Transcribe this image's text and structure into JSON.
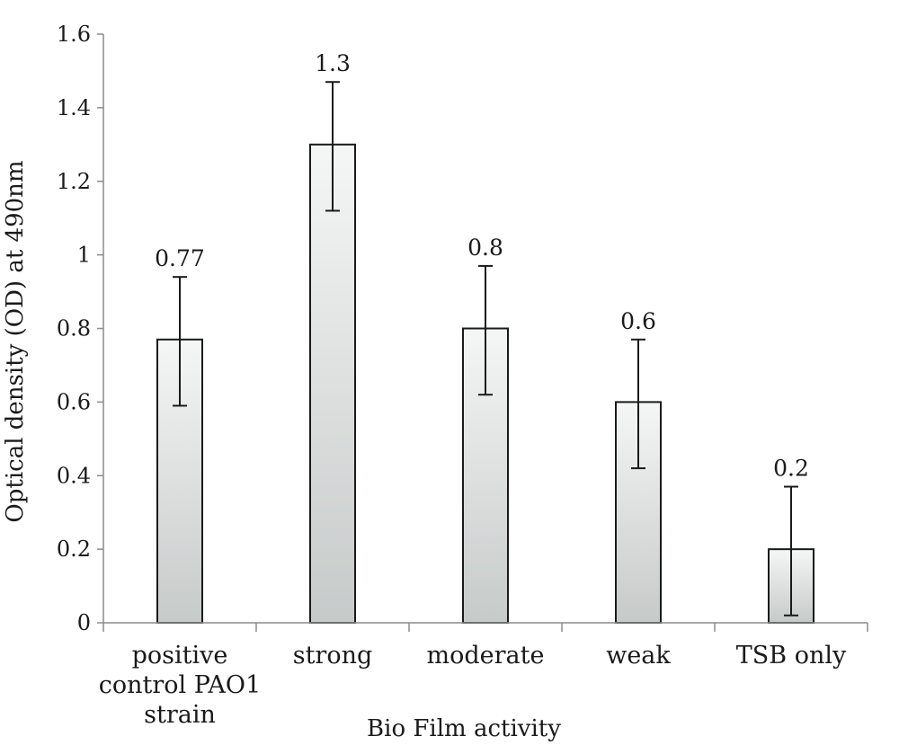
{
  "chart_data": {
    "type": "bar",
    "xlabel": "Bio Film activity",
    "ylabel": "Optical density (OD) at 490nm",
    "ylim": [
      0,
      1.6
    ],
    "yticks": [
      "0",
      "0.2",
      "0.4",
      "0.6",
      "0.8",
      "1",
      "1.2",
      "1.4",
      "1.6"
    ],
    "categories": [
      [
        "positive",
        "control PAO1",
        "strain"
      ],
      [
        "strong"
      ],
      [
        "moderate"
      ],
      [
        "weak"
      ],
      [
        "TSB only"
      ]
    ],
    "values": [
      0.77,
      1.3,
      0.8,
      0.6,
      0.2
    ],
    "error_low": [
      0.59,
      1.12,
      0.62,
      0.42,
      0.02
    ],
    "error_high": [
      0.94,
      1.47,
      0.97,
      0.77,
      0.37
    ],
    "data_labels": [
      "0.77",
      "1.3",
      "0.8",
      "0.6",
      "0.2"
    ],
    "grid": false,
    "legend": "none",
    "bar_fill_top": "#f5f6f6",
    "bar_fill_bottom": "#c6cac9",
    "bar_stroke": "#1a1a1a",
    "axis_color": "#8c8c8c"
  }
}
